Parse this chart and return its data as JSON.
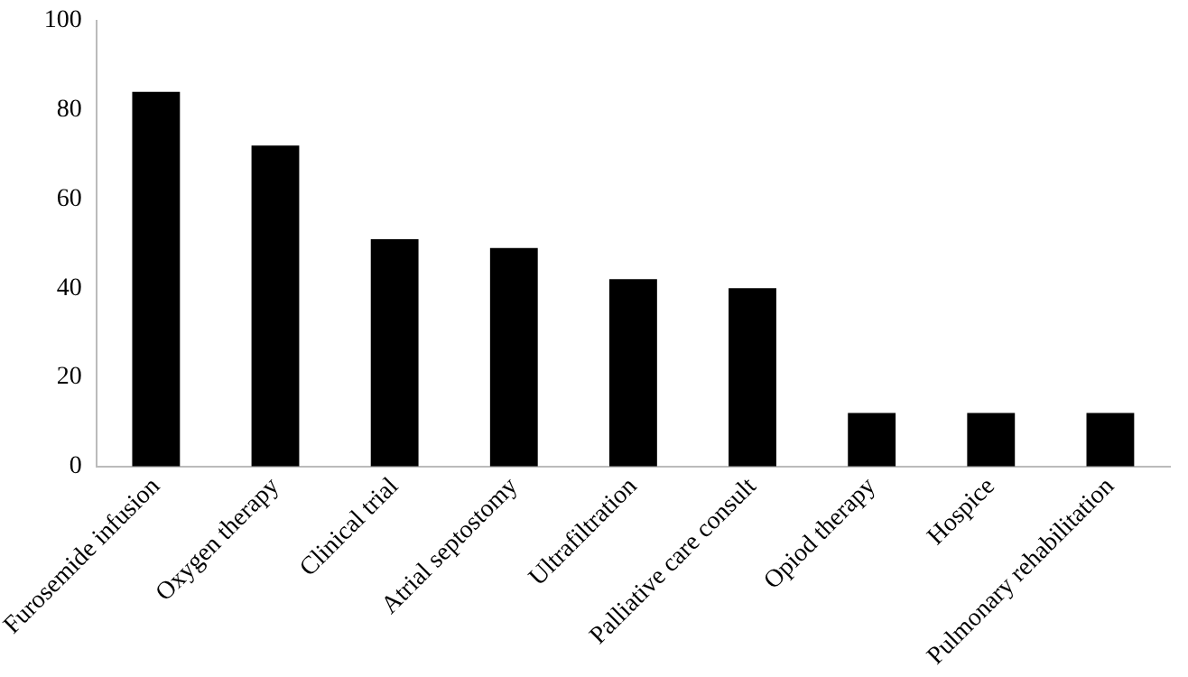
{
  "chart_data": {
    "type": "bar",
    "categories": [
      "Furosemide infusion",
      "Oxygen therapy",
      "Clinical trial",
      "Atrial septostomy",
      "Ultrafiltration",
      "Palliative care consult",
      "Opiod therapy",
      "Hospice",
      "Pulmonary rehabilitation"
    ],
    "values": [
      84,
      72,
      51,
      49,
      42,
      40,
      12,
      12,
      12
    ],
    "color": "#000000",
    "ylim": [
      0,
      100
    ],
    "yticks": [
      0,
      20,
      40,
      60,
      80,
      100
    ],
    "grid": false,
    "legend": false
  }
}
